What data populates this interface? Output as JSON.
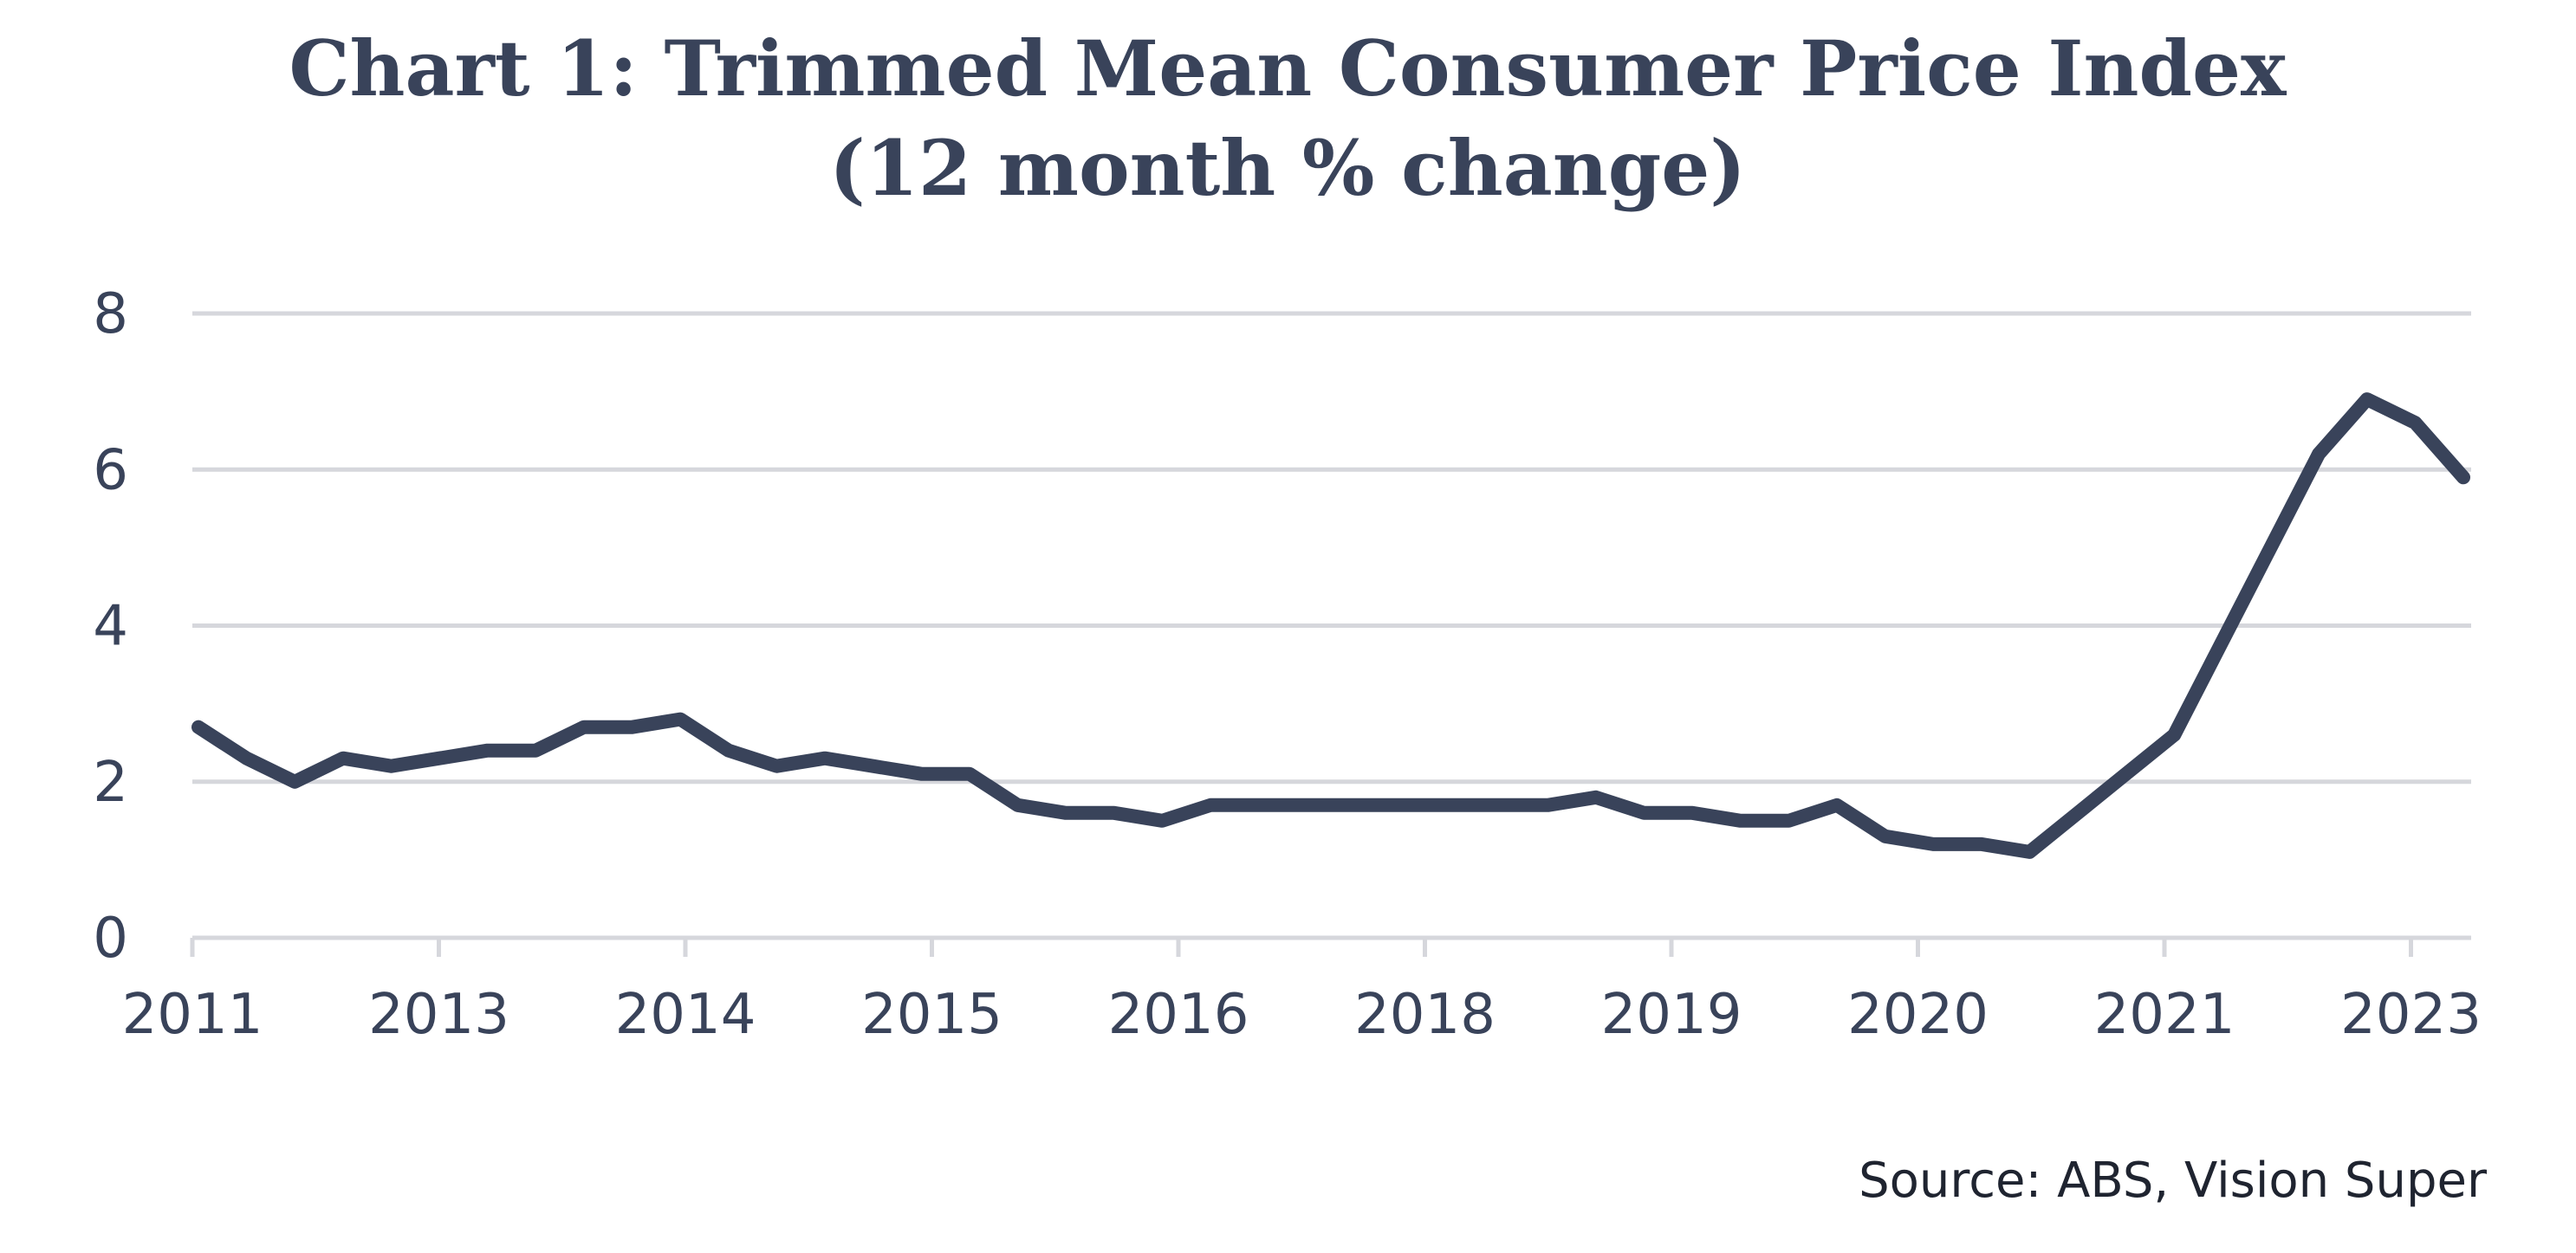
{
  "chart_data": {
    "type": "line",
    "title": [
      "Chart 1: Trimmed Mean Consumer Price Index",
      "(12 month % change)"
    ],
    "xlabel": "",
    "ylabel": "",
    "ylim": [
      0,
      8
    ],
    "yticks": [
      0,
      2,
      4,
      6,
      8
    ],
    "grid": true,
    "legend": "none",
    "x_tick_labels": [
      "2011",
      "2013",
      "2014",
      "2015",
      "2016",
      "2018",
      "2019",
      "2020",
      "2021",
      "2023"
    ],
    "series": [
      {
        "name": "Trimmed Mean CPI (12 month % change)",
        "color": "#39435a",
        "values": [
          2.7,
          2.3,
          2.0,
          2.3,
          2.2,
          2.3,
          2.4,
          2.4,
          2.7,
          2.7,
          2.8,
          2.4,
          2.2,
          2.3,
          2.2,
          2.1,
          2.1,
          1.7,
          1.6,
          1.6,
          1.5,
          1.7,
          1.7,
          1.7,
          1.7,
          1.7,
          1.7,
          1.7,
          1.7,
          1.8,
          1.6,
          1.6,
          1.5,
          1.5,
          1.7,
          1.3,
          1.2,
          1.2,
          1.1,
          1.6,
          2.1,
          2.6,
          3.8,
          5.0,
          6.2,
          6.9,
          6.6,
          5.9
        ]
      }
    ],
    "source": "Source: ABS, Vision Super"
  }
}
